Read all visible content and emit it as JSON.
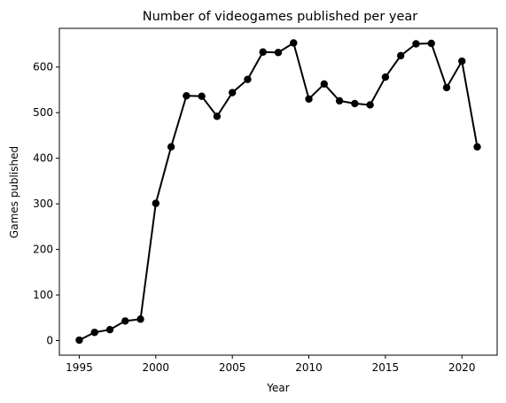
{
  "chart_data": {
    "type": "line",
    "title": "Number of videogames published per year",
    "xlabel": "Year",
    "ylabel": "Games published",
    "xlim": [
      1993.7,
      2022.3
    ],
    "ylim": [
      -32,
      685
    ],
    "xticks": [
      1995,
      2000,
      2005,
      2010,
      2015,
      2020
    ],
    "yticks": [
      0,
      100,
      200,
      300,
      400,
      500,
      600
    ],
    "grid": false,
    "legend": "none",
    "series": [
      {
        "color": "#000000",
        "marker": "circle",
        "x": [
          1995,
          1996,
          1997,
          1998,
          1999,
          2000,
          2001,
          2002,
          2003,
          2004,
          2005,
          2006,
          2007,
          2008,
          2009,
          2010,
          2011,
          2012,
          2013,
          2014,
          2015,
          2016,
          2017,
          2018,
          2019,
          2020,
          2021
        ],
        "y": [
          1,
          18,
          24,
          43,
          47,
          301,
          425,
          537,
          536,
          492,
          544,
          573,
          633,
          632,
          653,
          530,
          563,
          526,
          520,
          517,
          578,
          625,
          651,
          652,
          555,
          613,
          425
        ]
      }
    ]
  }
}
